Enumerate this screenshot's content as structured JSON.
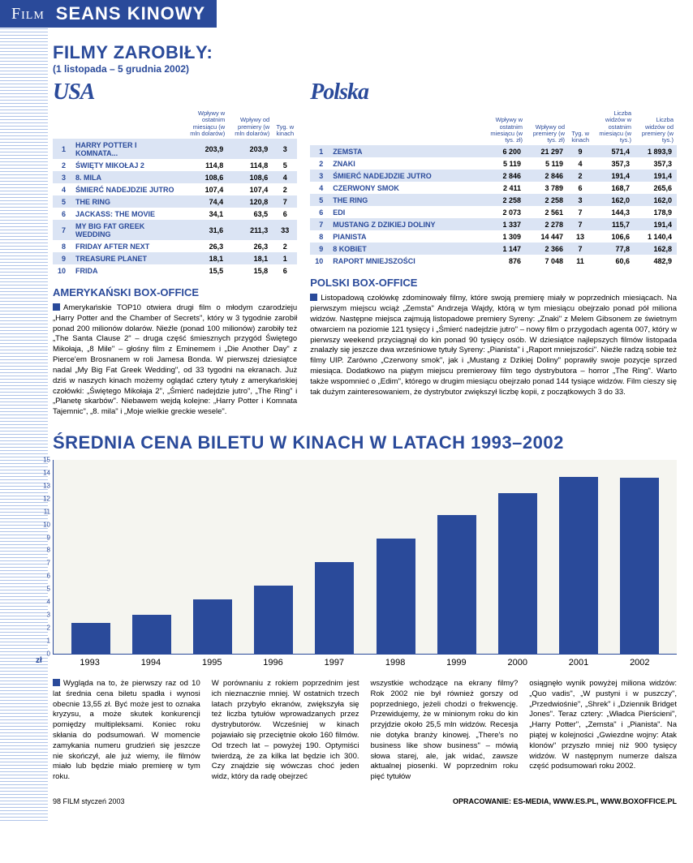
{
  "header": {
    "section": "Film",
    "title": "SEANS KINOWY"
  },
  "earnings": {
    "title": "FILMY ZAROBIŁY:",
    "period": "(1 listopada – 5 grudnia 2002)"
  },
  "usa": {
    "label": "USA",
    "headers": [
      "",
      "",
      "Wpływy w ostatnim miesiącu (w mln dolarów)",
      "Wpływy od premiery (w mln dolarów)",
      "Tyg. w kinach"
    ],
    "rows": [
      {
        "rank": "1",
        "title": "HARRY POTTER I KOMNATA...",
        "m": "203,9",
        "p": "203,9",
        "w": "3"
      },
      {
        "rank": "2",
        "title": "ŚWIĘTY MIKOŁAJ 2",
        "m": "114,8",
        "p": "114,8",
        "w": "5"
      },
      {
        "rank": "3",
        "title": "8. MILA",
        "m": "108,6",
        "p": "108,6",
        "w": "4"
      },
      {
        "rank": "4",
        "title": "ŚMIERĆ NADEJDZIE JUTRO",
        "m": "107,4",
        "p": "107,4",
        "w": "2"
      },
      {
        "rank": "5",
        "title": "THE RING",
        "m": "74,4",
        "p": "120,8",
        "w": "7"
      },
      {
        "rank": "6",
        "title": "JACKASS: THE MOVIE",
        "m": "34,1",
        "p": "63,5",
        "w": "6"
      },
      {
        "rank": "7",
        "title": "MY BIG FAT GREEK WEDDING",
        "m": "31,6",
        "p": "211,3",
        "w": "33"
      },
      {
        "rank": "8",
        "title": "FRIDAY AFTER NEXT",
        "m": "26,3",
        "p": "26,3",
        "w": "2"
      },
      {
        "rank": "9",
        "title": "TREASURE PLANET",
        "m": "18,1",
        "p": "18,1",
        "w": "1"
      },
      {
        "rank": "10",
        "title": "FRIDA",
        "m": "15,5",
        "p": "15,8",
        "w": "6"
      }
    ]
  },
  "poland": {
    "label": "Polska",
    "headers": [
      "",
      "",
      "Wpływy w ostatnim miesiącu (w tys. zł)",
      "Wpływy od premiery (w tys. zł)",
      "Tyg. w kinach",
      "Liczba widzów w ostatnim miesiącu (w tys.)",
      "Liczba widzów od premiery (w tys.)"
    ],
    "rows": [
      {
        "rank": "1",
        "title": "ZEMSTA",
        "m": "6 200",
        "p": "21 297",
        "w": "9",
        "v1": "571,4",
        "v2": "1 893,9"
      },
      {
        "rank": "2",
        "title": "ZNAKI",
        "m": "5 119",
        "p": "5 119",
        "w": "4",
        "v1": "357,3",
        "v2": "357,3"
      },
      {
        "rank": "3",
        "title": "ŚMIERĆ NADEJDZIE JUTRO",
        "m": "2 846",
        "p": "2 846",
        "w": "2",
        "v1": "191,4",
        "v2": "191,4"
      },
      {
        "rank": "4",
        "title": "CZERWONY SMOK",
        "m": "2 411",
        "p": "3 789",
        "w": "6",
        "v1": "168,7",
        "v2": "265,6"
      },
      {
        "rank": "5",
        "title": "THE RING",
        "m": "2 258",
        "p": "2 258",
        "w": "3",
        "v1": "162,0",
        "v2": "162,0"
      },
      {
        "rank": "6",
        "title": "EDI",
        "m": "2 073",
        "p": "2 561",
        "w": "7",
        "v1": "144,3",
        "v2": "178,9"
      },
      {
        "rank": "7",
        "title": "MUSTANG Z DZIKIEJ DOLINY",
        "m": "1 337",
        "p": "2 278",
        "w": "7",
        "v1": "115,7",
        "v2": "191,4"
      },
      {
        "rank": "8",
        "title": "PIANISTA",
        "m": "1 309",
        "p": "14 447",
        "w": "13",
        "v1": "106,6",
        "v2": "1 140,4"
      },
      {
        "rank": "9",
        "title": "8 KOBIET",
        "m": "1 147",
        "p": "2 366",
        "w": "7",
        "v1": "77,8",
        "v2": "162,8"
      },
      {
        "rank": "10",
        "title": "RAPORT MNIEJSZOŚCI",
        "m": "876",
        "p": "7 048",
        "w": "11",
        "v1": "60,6",
        "v2": "482,9"
      }
    ]
  },
  "usBox": {
    "heading": "AMERYKAŃSKI BOX-OFFICE",
    "text": "Amerykańskie TOP10 otwiera drugi film o młodym czarodzieju „Harry Potter and the Chamber of Secrets\", który w 3 tygodnie zarobił ponad 200 milionów dolarów. Nieźle (ponad 100 milionów) zarobiły też „The Santa Clause 2\" – druga część śmiesznych przygód Świętego Mikołaja, „8 Mile\" – głośny film z Eminemem i „Die Another Day\" z Pierce'em Brosnanem w roli Jamesa Bonda. W pierwszej dziesiątce nadal „My Big Fat Greek Wedding\", od 33 tygodni na ekranach. Już dziś w naszych kinach możemy oglądać cztery tytuły z amerykańskiej czołówki: „Świętego Mikołaja 2\", „Śmierć nadejdzie jutro\", „The Ring\" i „Planetę skarbów\". Niebawem wejdą kolejne: „Harry Potter i Komnata Tajemnic\", „8. mila\" i „Moje wielkie greckie wesele\"."
  },
  "plBox": {
    "heading": "POLSKI BOX-OFFICE",
    "text": "Listopadową czołówkę zdominowały filmy, które swoją premierę miały w poprzednich miesiącach. Na pierwszym miejscu wciąż „Zemsta\" Andrzeja Wajdy, którą w tym miesiącu obejrzało ponad pół miliona widzów. Następne miejsca zajmują listopadowe premiery Syreny: „Znaki\" z Melem Gibsonem ze świetnym otwarciem na poziomie 121 tysięcy i „Śmierć nadejdzie jutro\" – nowy film o przygodach agenta 007, który w pierwszy weekend przyciągnął do kin ponad 90 tysięcy osób. W dziesiątce najlepszych filmów listopada znalazły się jeszcze dwa wrześniowe tytuły Syreny: „Pianista\" i „Raport mniejszości\". Nieźle radzą sobie też filmy UIP. Zarówno „Czerwony smok\", jak i „Mustang z Dzikiej Doliny\" poprawiły swoje pozycje sprzed miesiąca. Dodatkowo na piątym miejscu premierowy film tego dystrybutora – horror „The Ring\". Warto także wspomnieć o „Edim\", którego w drugim miesiącu obejrzało ponad 144 tysiące widzów. Film cieszy się tak dużym zainteresowaniem, że dystrybutor zwiększył liczbę kopii, z początkowych 3 do 33."
  },
  "chart": {
    "title": "ŚREDNIA CENA BILETU W KINACH W LATACH 1993–2002",
    "y_max": 15,
    "y_label": "zł",
    "bar_color": "#2a4a9a",
    "years": [
      "1993",
      "1994",
      "1995",
      "1996",
      "1997",
      "1998",
      "1999",
      "2000",
      "2001",
      "2002"
    ],
    "values": [
      2.4,
      3.0,
      4.2,
      5.3,
      7.1,
      8.9,
      10.7,
      12.4,
      13.7,
      13.6
    ]
  },
  "bottom": {
    "c1": "Wygląda na to, że pierwszy raz od 10 lat średnia cena biletu spadła i wynosi obecnie 13,55 zł. Być może jest to oznaka kryzysu, a może skutek konkurencji pomiędzy multipleksami.\nKoniec roku skłania do podsumowań. W momencie zamykania numeru grudzień się jeszcze nie skończył, ale już wiemy, ile filmów miało lub będzie miało premierę w tym roku.",
    "c2": "W porównaniu z rokiem poprzednim jest ich nieznacznie mniej. W ostatnich trzech latach przybyło ekranów, zwiększyła się też liczba tytułów wprowadzanych przez dystrybutorów. Wcześniej w kinach pojawiało się przeciętnie około 160 filmów. Od trzech lat – powyżej 190. Optymiści twierdzą, że za kilka lat będzie ich 300. Czy znajdzie się wówczas choć jeden widz, który da radę obejrzeć",
    "c3": "wszystkie wchodzące na ekrany filmy?\nRok 2002 nie był również gorszy od poprzedniego, jeżeli chodzi o frekwencję. Przewidujemy, że w minionym roku do kin przyjdzie około 25,5 mln widzów. Recesja nie dotyka branży kinowej. „There's no business like show business\" – mówią słowa starej, ale, jak widać, zawsze aktualnej piosenki. W poprzednim roku pięć tytułów",
    "c4": "osiągnęło wynik powyżej miliona widzów: „Quo vadis\", „W pustyni i w puszczy\", „Przedwiośnie\", „Shrek\" i „Dziennik Bridget Jones\". Teraz cztery: „Władca Pierścieni\", „Harry Potter\", „Zemsta\" i „Pianista\". Na piątej w kolejności „Gwiezdne wojny: Atak klonów\" przyszło mniej niż 900 tysięcy widzów. W następnym numerze dalsza część podsumowań roku 2002."
  },
  "footer": {
    "left": "98 FILM styczeń 2003",
    "right": "OPRACOWANIE: ES-MEDIA, WWW.ES.PL, WWW.BOXOFFICE.PL"
  }
}
